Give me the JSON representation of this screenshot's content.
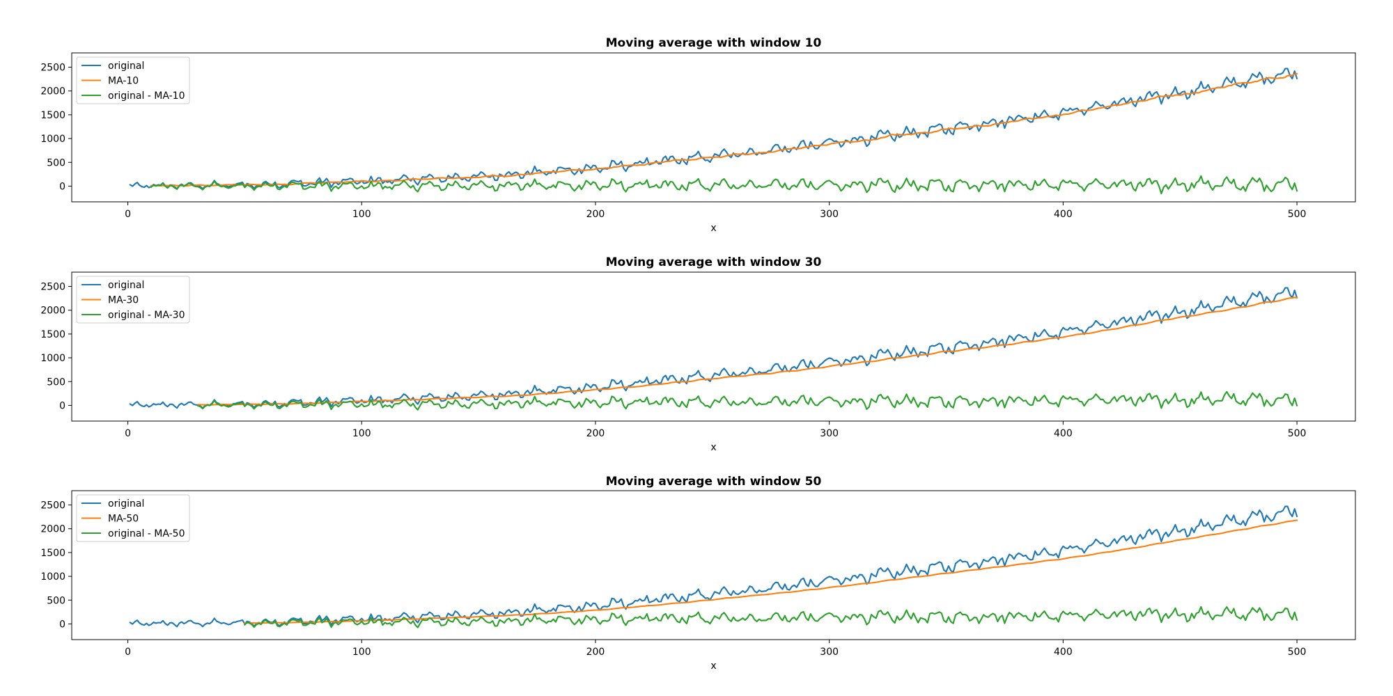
{
  "chart_data": [
    {
      "type": "line",
      "title": "Moving average with window 10",
      "xlabel": "x",
      "ylabel": "",
      "xlim": [
        -24,
        525
      ],
      "ylim": [
        -330,
        2800
      ],
      "xticks": [
        0,
        100,
        200,
        300,
        400,
        500
      ],
      "yticks": [
        0,
        500,
        1000,
        1500,
        2000,
        2500
      ],
      "grid": false,
      "legend": "top-left",
      "window": 10,
      "series": [
        {
          "name": "original",
          "color": "#1f77b4"
        },
        {
          "name": "MA-10",
          "color": "#ff7f0e"
        },
        {
          "name": "original - MA-10",
          "color": "#2ca02c"
        }
      ]
    },
    {
      "type": "line",
      "title": "Moving average with window 30",
      "xlabel": "x",
      "ylabel": "",
      "xlim": [
        -24,
        525
      ],
      "ylim": [
        -330,
        2800
      ],
      "xticks": [
        0,
        100,
        200,
        300,
        400,
        500
      ],
      "yticks": [
        0,
        500,
        1000,
        1500,
        2000,
        2500
      ],
      "grid": false,
      "legend": "top-left",
      "window": 30,
      "series": [
        {
          "name": "original",
          "color": "#1f77b4"
        },
        {
          "name": "MA-30",
          "color": "#ff7f0e"
        },
        {
          "name": "original - MA-30",
          "color": "#2ca02c"
        }
      ]
    },
    {
      "type": "line",
      "title": "Moving average with window 50",
      "xlabel": "x",
      "ylabel": "",
      "xlim": [
        -24,
        525
      ],
      "ylim": [
        -330,
        2800
      ],
      "xticks": [
        0,
        100,
        200,
        300,
        400,
        500
      ],
      "yticks": [
        0,
        500,
        1000,
        1500,
        2000,
        2500
      ],
      "grid": false,
      "legend": "top-left",
      "window": 50,
      "series": [
        {
          "name": "original",
          "color": "#1f77b4"
        },
        {
          "name": "MA-50",
          "color": "#ff7f0e"
        },
        {
          "name": "original - MA-50",
          "color": "#2ca02c"
        }
      ]
    }
  ],
  "original_series": {
    "x_start": 1,
    "x_end": 500,
    "trend": [
      [
        0,
        0
      ],
      [
        50,
        30
      ],
      [
        100,
        100
      ],
      [
        150,
        200
      ],
      [
        200,
        380
      ],
      [
        250,
        620
      ],
      [
        300,
        900
      ],
      [
        350,
        1210
      ],
      [
        400,
        1550
      ],
      [
        450,
        1960
      ],
      [
        500,
        2400
      ]
    ],
    "noise_amplitude": [
      [
        0,
        70
      ],
      [
        100,
        110
      ],
      [
        200,
        130
      ],
      [
        300,
        150
      ],
      [
        400,
        160
      ],
      [
        500,
        170
      ]
    ]
  }
}
